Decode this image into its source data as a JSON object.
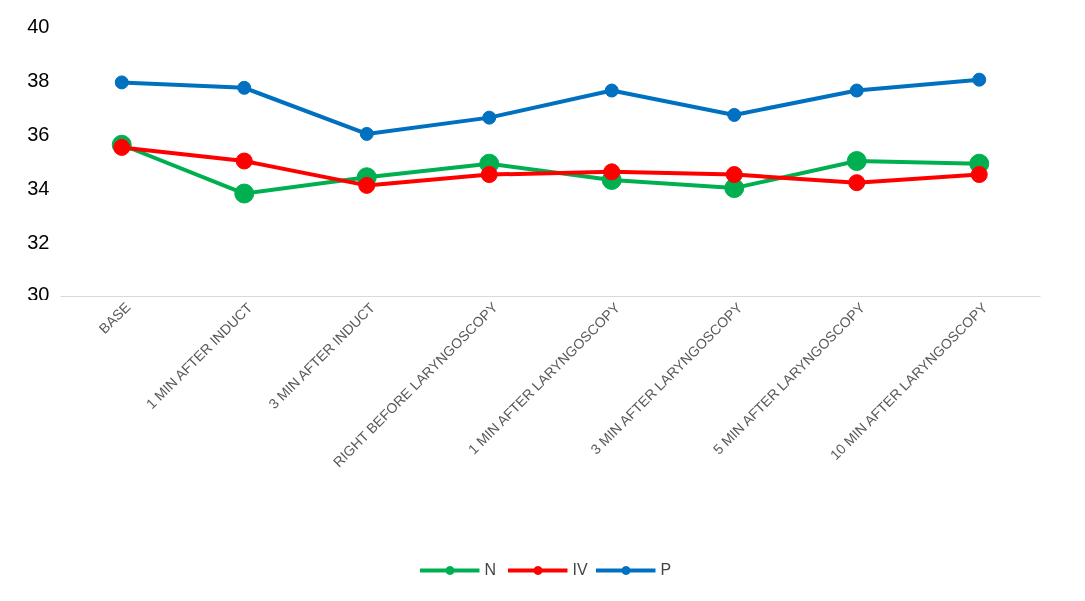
{
  "chart_data": {
    "type": "line",
    "categories": [
      "BASE",
      "1 MIN AFTER INDUCT",
      "3 MIN AFTER INDUCT",
      "RIGHT BEFORE LARYNGOSCOPY",
      "1 MIN AFTER LARYNGOSCOPY",
      "3 MIN AFTER LARYNGOSCOPY",
      "5 MIN AFTER LARYNGOSCOPY",
      "10 MIN AFTER LARYNGOSCOPY"
    ],
    "series": [
      {
        "name": "N",
        "color": "#00b050",
        "values": [
          35.6,
          33.8,
          34.4,
          34.9,
          34.3,
          34.0,
          35.0,
          34.9
        ]
      },
      {
        "name": "IV",
        "color": "#ff0000",
        "values": [
          35.5,
          35.0,
          34.1,
          34.5,
          34.6,
          34.5,
          34.2,
          34.5
        ]
      },
      {
        "name": "P",
        "color": "#0070c0",
        "values": [
          37.9,
          37.7,
          36.0,
          36.6,
          37.6,
          36.7,
          37.6,
          38.0
        ]
      }
    ],
    "ylim": [
      30,
      40
    ],
    "yticks": [
      30,
      32,
      34,
      36,
      38,
      40
    ],
    "grid": false,
    "legend": "bottom",
    "marker": "circle",
    "line_style": "solid"
  }
}
